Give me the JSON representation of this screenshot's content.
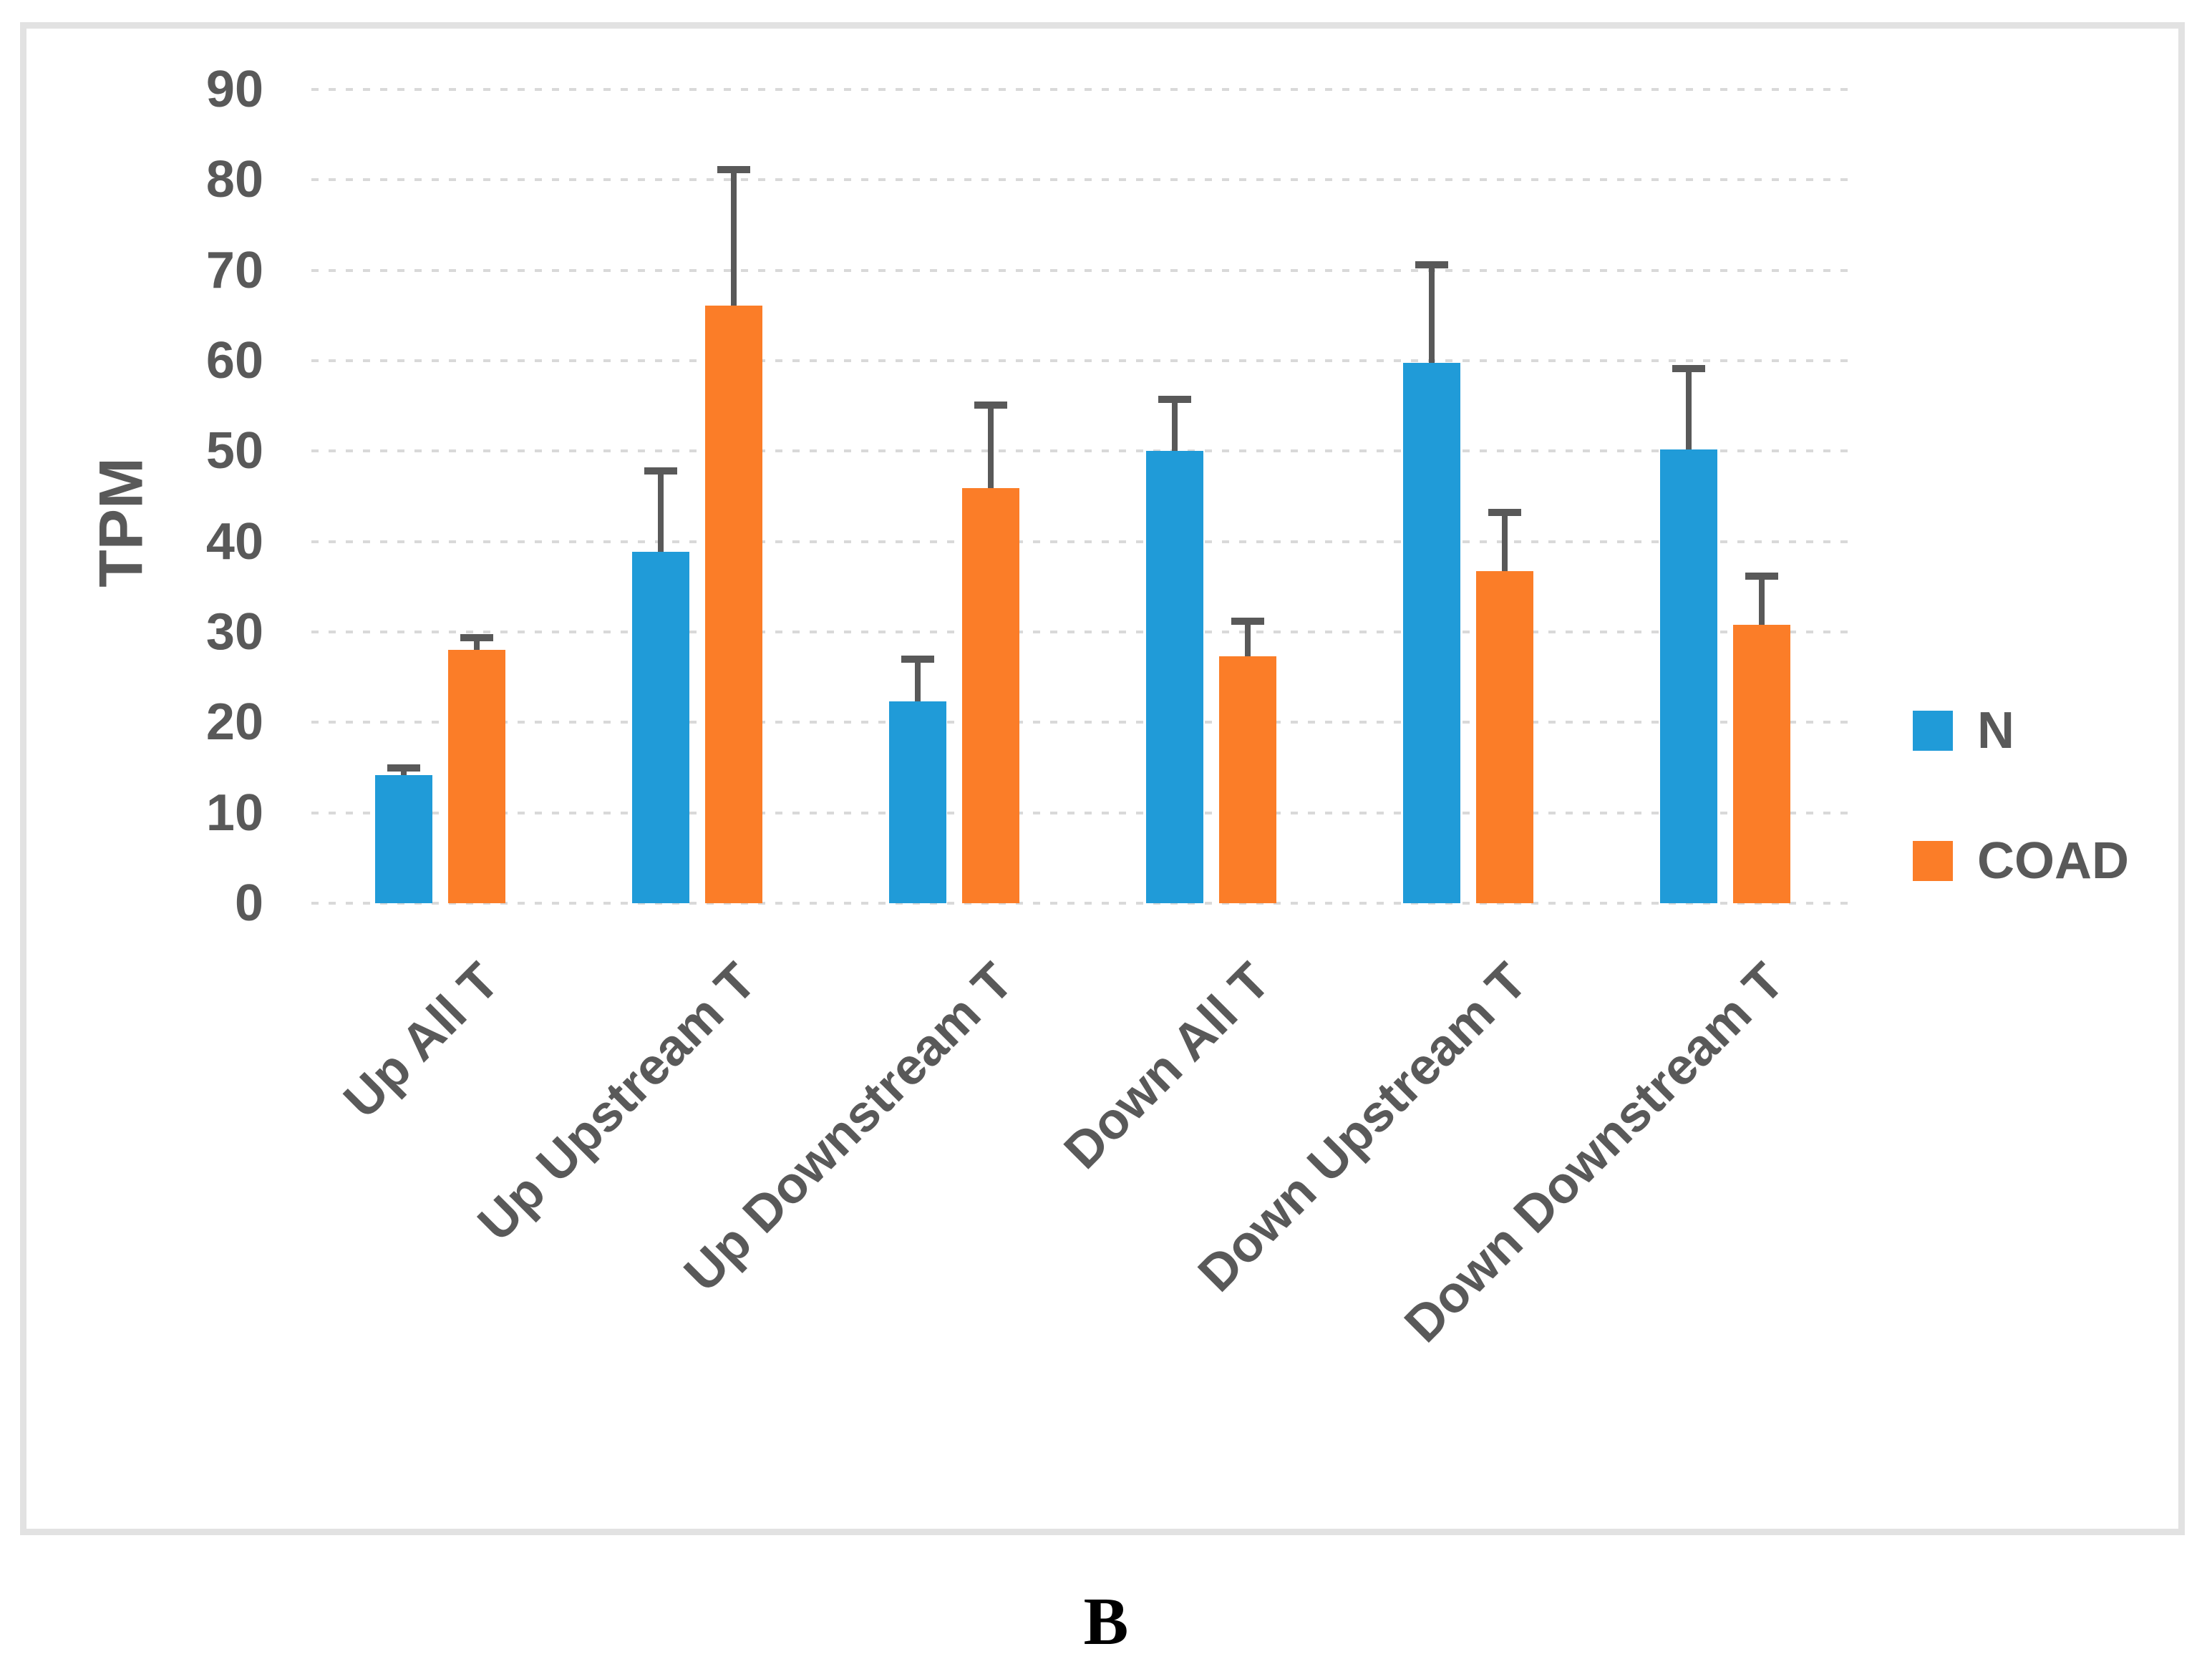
{
  "figure_label": "B",
  "chart_data": {
    "type": "bar",
    "title": "",
    "ylabel": "TPM",
    "xlabel": "",
    "ylim": [
      0,
      90
    ],
    "ytick_step": 10,
    "yticks": [
      0,
      10,
      20,
      30,
      40,
      50,
      60,
      70,
      80,
      90
    ],
    "grid": "horizontal dashed",
    "legend_position": "right",
    "categories": [
      "Up All T",
      "Up Upstream T",
      "Up Downstream T",
      "Down All T",
      "Down Upstream T",
      "Down Downstream T"
    ],
    "series": [
      {
        "name": "N",
        "color": "#209BD8",
        "values": [
          14.2,
          38.9,
          22.3,
          50.0,
          59.8,
          50.2
        ],
        "errors_up": [
          0.8,
          8.9,
          4.7,
          5.7,
          10.8,
          8.9
        ]
      },
      {
        "name": "COAD",
        "color": "#FB7D28",
        "values": [
          28.0,
          66.1,
          45.9,
          27.3,
          36.7,
          30.8
        ],
        "errors_up": [
          1.4,
          15.0,
          9.2,
          3.9,
          6.5,
          5.4
        ]
      }
    ],
    "error_bar_color": "#595959",
    "axis_text_color": "#595959",
    "gridline_color": "#D9D9D9",
    "frame_color": "#E2E2E2"
  }
}
